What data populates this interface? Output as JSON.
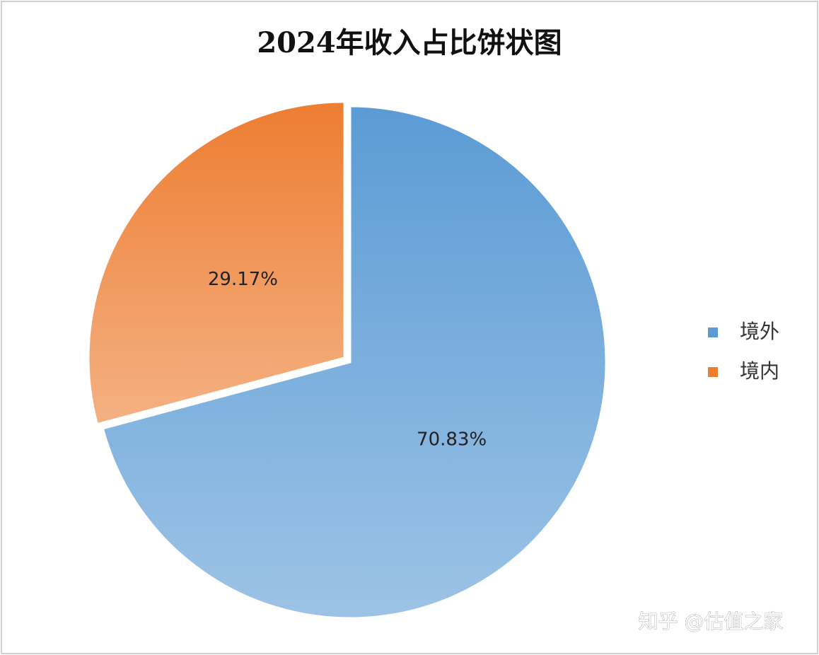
{
  "chart_data": {
    "type": "pie",
    "title": "2024年收入占比饼状图",
    "categories": [
      "境外",
      "境内"
    ],
    "values": [
      70.83,
      29.17
    ],
    "value_labels": [
      "70.83%",
      "29.17%"
    ],
    "colors": [
      "#5b9bd5",
      "#ed7d31"
    ],
    "legend": "right",
    "watermark": "知乎 @估值之家"
  }
}
